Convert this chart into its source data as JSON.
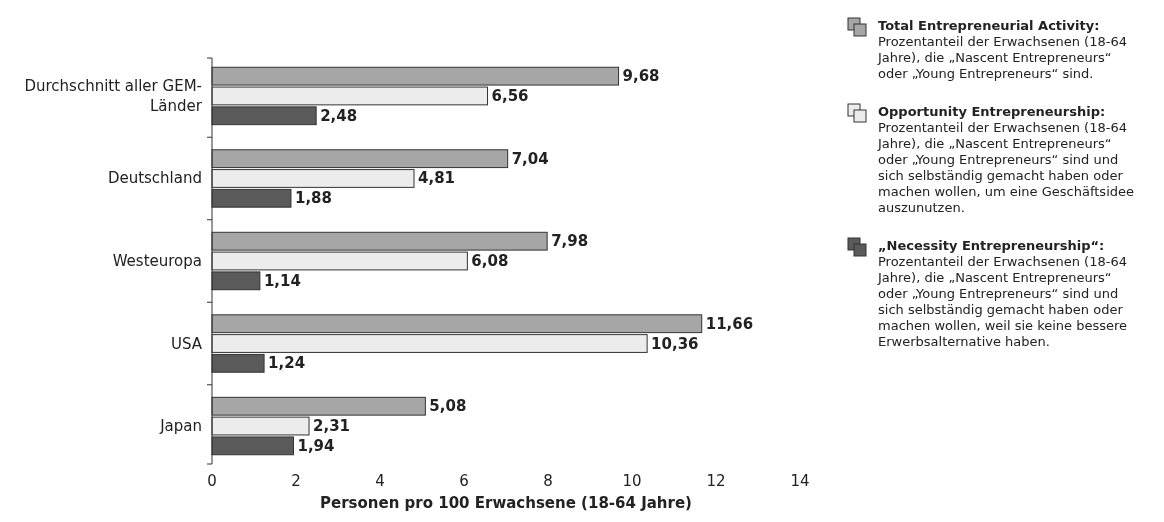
{
  "chart_data": {
    "type": "bar",
    "orientation": "horizontal",
    "xlabel": "Personen pro 100 Erwachsene (18-64 Jahre)",
    "categories": [
      "Durchschnitt aller GEM-Länder",
      "Deutschland",
      "Westeuropa",
      "USA",
      "Japan"
    ],
    "series": [
      {
        "name": "Total Entrepreneurial Activity:",
        "color": "#a6a6a6",
        "values": [
          9.68,
          7.04,
          7.98,
          11.66,
          5.08
        ]
      },
      {
        "name": "Opportunity Entrepreneurship:",
        "color": "#ececec",
        "values": [
          6.56,
          4.81,
          6.08,
          10.36,
          2.31
        ]
      },
      {
        "name": "„Necessity Entrepreneurship“:",
        "color": "#5a5a5a",
        "values": [
          2.48,
          1.88,
          1.14,
          1.24,
          1.94
        ]
      }
    ],
    "value_labels": [
      [
        "9,68",
        "7,04",
        "7,98",
        "11,66",
        "5,08"
      ],
      [
        "6,56",
        "4,81",
        "6,08",
        "10,36",
        "2,31"
      ],
      [
        "2,48",
        "1,88",
        "1,14",
        "1,24",
        "1,94"
      ]
    ],
    "annotations": [
      "Prozentanteil der Erwachsenen (18-64 Jahre), die „Nascent Entrepreneurs“ oder „Young Entrepreneurs“ sind.",
      "Prozentanteil der Erwachsenen (18-64 Jahre), die „Nascent Entrepreneurs“ oder „Young Entrepreneurs“ sind und sich selbständig gemacht haben oder machen wollen, um eine Geschäftsidee auszunutzen.",
      "Prozentanteil der Erwachsenen (18-64 Jahre), die „Nascent Entrepreneurs“ oder „Young Entrepreneurs“ sind und sich selbständig gemacht haben oder machen wollen, weil sie keine bessere Erwerbsalternative haben."
    ],
    "xlim": [
      0,
      14
    ],
    "xticks": [
      0,
      2,
      4,
      6,
      8,
      10,
      12,
      14
    ],
    "grid": false,
    "legend": "right"
  }
}
